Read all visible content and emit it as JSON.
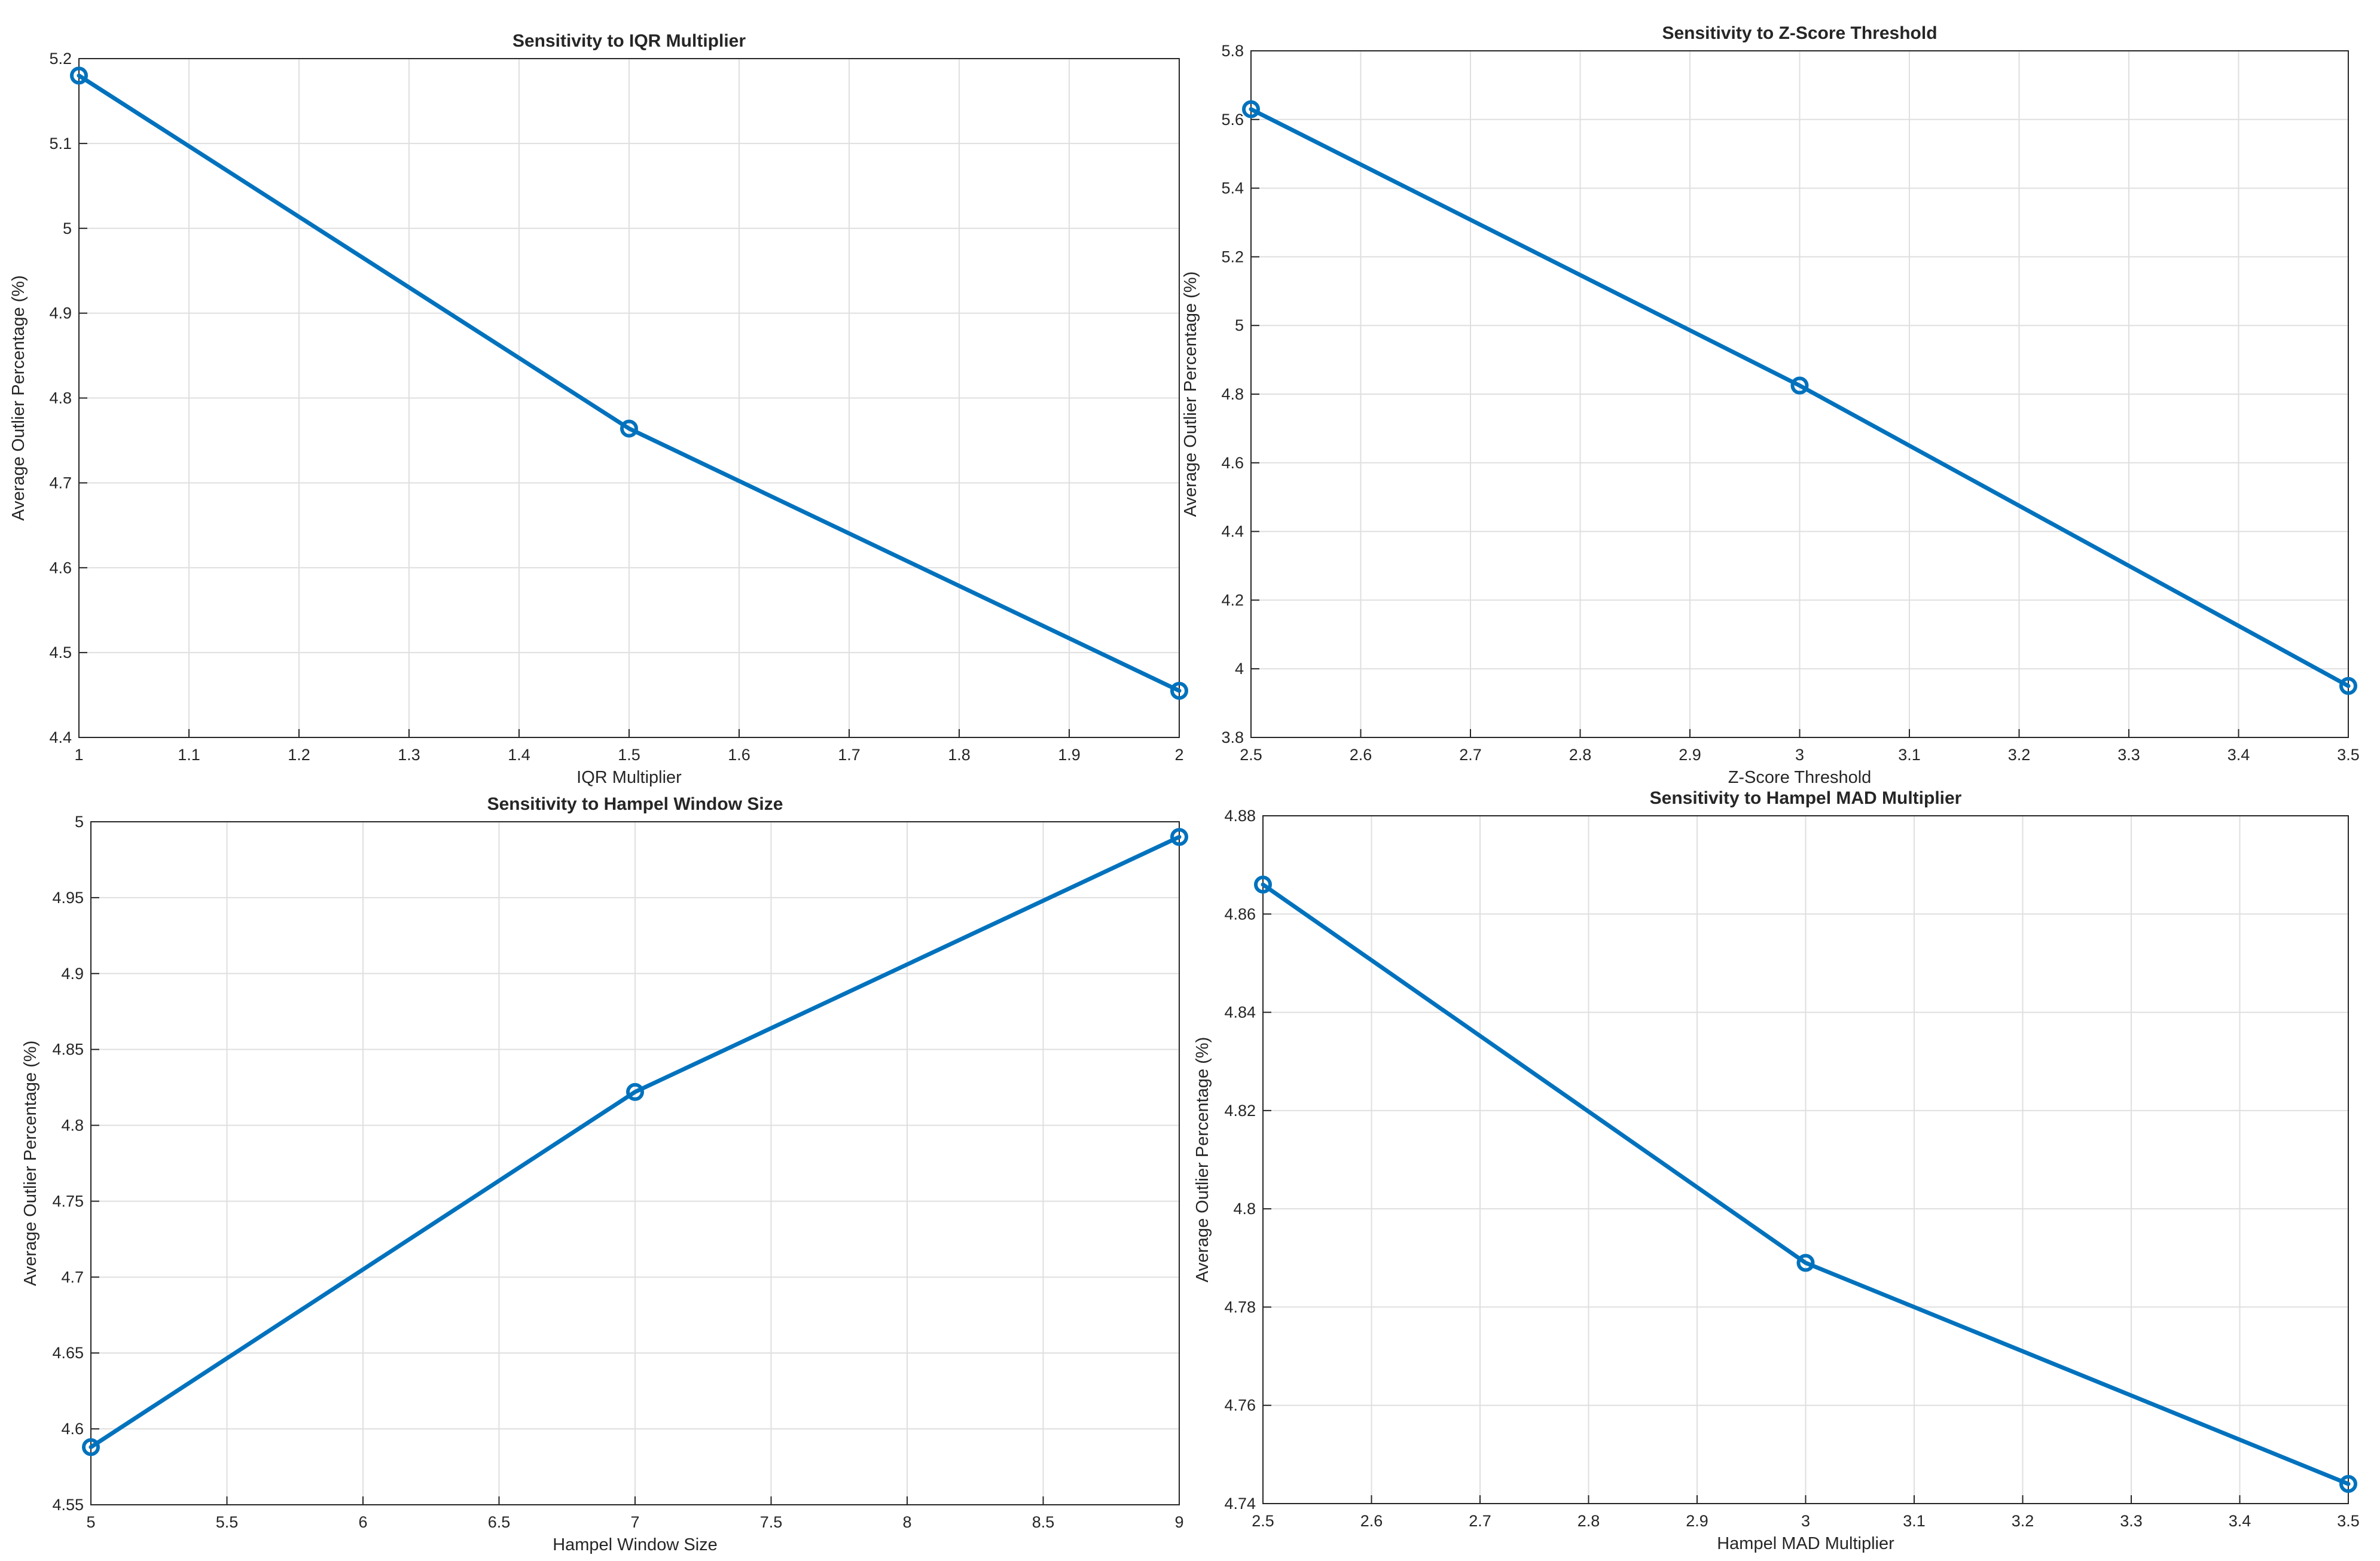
{
  "colors": {
    "series": "#0072BD"
  },
  "chart_data": [
    {
      "type": "line",
      "title": "Sensitivity to IQR Multiplier",
      "xlabel": "IQR Multiplier",
      "ylabel": "Average Outlier Percentage (%)",
      "x": [
        1,
        1.5,
        2
      ],
      "y": [
        5.18,
        4.764,
        4.455
      ],
      "xlim": [
        1,
        2
      ],
      "ylim": [
        4.4,
        5.2
      ],
      "xticks": [
        1,
        1.1,
        1.2,
        1.3,
        1.4,
        1.5,
        1.6,
        1.7,
        1.8,
        1.9,
        2
      ],
      "xtick_labels": [
        "1",
        "1.1",
        "1.2",
        "1.3",
        "1.4",
        "1.5",
        "1.6",
        "1.7",
        "1.8",
        "1.9",
        "2"
      ],
      "yticks": [
        4.4,
        4.5,
        4.6,
        4.7,
        4.8,
        4.9,
        5,
        5.1,
        5.2
      ],
      "ytick_labels": [
        "4.4",
        "4.5",
        "4.6",
        "4.7",
        "4.8",
        "4.9",
        "5",
        "5.1",
        "5.2"
      ],
      "grid": true
    },
    {
      "type": "line",
      "title": "Sensitivity to Z-Score Threshold",
      "xlabel": "Z-Score Threshold",
      "ylabel": "Average Outlier Percentage (%)",
      "x": [
        2.5,
        3,
        3.5
      ],
      "y": [
        5.63,
        4.825,
        3.95
      ],
      "xlim": [
        2.5,
        3.5
      ],
      "ylim": [
        3.8,
        5.8
      ],
      "xticks": [
        2.5,
        2.6,
        2.7,
        2.8,
        2.9,
        3,
        3.1,
        3.2,
        3.3,
        3.4,
        3.5
      ],
      "xtick_labels": [
        "2.5",
        "2.6",
        "2.7",
        "2.8",
        "2.9",
        "3",
        "3.1",
        "3.2",
        "3.3",
        "3.4",
        "3.5"
      ],
      "yticks": [
        3.8,
        4,
        4.2,
        4.4,
        4.6,
        4.8,
        5,
        5.2,
        5.4,
        5.6,
        5.8
      ],
      "ytick_labels": [
        "3.8",
        "4",
        "4.2",
        "4.4",
        "4.6",
        "4.8",
        "5",
        "5.2",
        "5.4",
        "5.6",
        "5.8"
      ],
      "grid": true
    },
    {
      "type": "line",
      "title": "Sensitivity to Hampel Window Size",
      "xlabel": "Hampel Window Size",
      "ylabel": "Average Outlier Percentage (%)",
      "x": [
        5,
        7,
        9
      ],
      "y": [
        4.588,
        4.822,
        4.99
      ],
      "xlim": [
        5,
        9
      ],
      "ylim": [
        4.55,
        5
      ],
      "xticks": [
        5,
        5.5,
        6,
        6.5,
        7,
        7.5,
        8,
        8.5,
        9
      ],
      "xtick_labels": [
        "5",
        "5.5",
        "6",
        "6.5",
        "7",
        "7.5",
        "8",
        "8.5",
        "9"
      ],
      "yticks": [
        4.55,
        4.6,
        4.65,
        4.7,
        4.75,
        4.8,
        4.85,
        4.9,
        4.95,
        5
      ],
      "ytick_labels": [
        "4.55",
        "4.6",
        "4.65",
        "4.7",
        "4.75",
        "4.8",
        "4.85",
        "4.9",
        "4.95",
        "5"
      ],
      "grid": true
    },
    {
      "type": "line",
      "title": "Sensitivity to Hampel MAD Multiplier",
      "xlabel": "Hampel MAD Multiplier",
      "ylabel": "Average Outlier Percentage (%)",
      "x": [
        2.5,
        3,
        3.5
      ],
      "y": [
        4.866,
        4.789,
        4.744
      ],
      "xlim": [
        2.5,
        3.5
      ],
      "ylim": [
        4.74,
        4.88
      ],
      "xticks": [
        2.5,
        2.6,
        2.7,
        2.8,
        2.9,
        3,
        3.1,
        3.2,
        3.3,
        3.4,
        3.5
      ],
      "xtick_labels": [
        "2.5",
        "2.6",
        "2.7",
        "2.8",
        "2.9",
        "3",
        "3.1",
        "3.2",
        "3.3",
        "3.4",
        "3.5"
      ],
      "yticks": [
        4.74,
        4.76,
        4.78,
        4.8,
        4.82,
        4.84,
        4.86,
        4.88
      ],
      "ytick_labels": [
        "4.74",
        "4.76",
        "4.78",
        "4.8",
        "4.82",
        "4.84",
        "4.86",
        "4.88"
      ],
      "grid": true
    }
  ]
}
